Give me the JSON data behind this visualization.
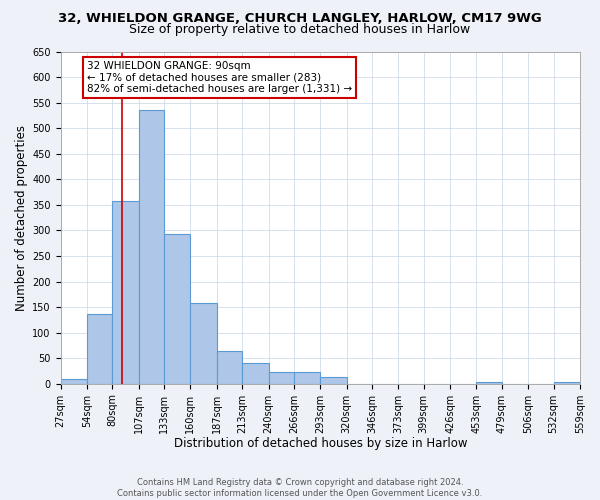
{
  "title": "32, WHIELDON GRANGE, CHURCH LANGLEY, HARLOW, CM17 9WG",
  "subtitle": "Size of property relative to detached houses in Harlow",
  "xlabel": "Distribution of detached houses by size in Harlow",
  "ylabel": "Number of detached properties",
  "bin_edges": [
    27,
    54,
    80,
    107,
    133,
    160,
    187,
    213,
    240,
    266,
    293,
    320,
    346,
    373,
    399,
    426,
    453,
    479,
    506,
    532,
    559
  ],
  "bin_heights": [
    10,
    137,
    358,
    535,
    292,
    157,
    65,
    40,
    22,
    22,
    13,
    0,
    0,
    0,
    0,
    0,
    3,
    0,
    0,
    3
  ],
  "bar_facecolor": "#aec6e8",
  "bar_edgecolor": "#5b9bd5",
  "bar_linewidth": 0.8,
  "vline_x": 90,
  "vline_color": "#cc0000",
  "vline_linewidth": 1.2,
  "annotation_text": "32 WHIELDON GRANGE: 90sqm\n← 17% of detached houses are smaller (283)\n82% of semi-detached houses are larger (1,331) →",
  "annotation_box_edgecolor": "#cc0000",
  "annotation_box_facecolor": "#ffffff",
  "ylim": [
    0,
    650
  ],
  "yticks": [
    0,
    50,
    100,
    150,
    200,
    250,
    300,
    350,
    400,
    450,
    500,
    550,
    600,
    650
  ],
  "xtick_labels": [
    "27sqm",
    "54sqm",
    "80sqm",
    "107sqm",
    "133sqm",
    "160sqm",
    "187sqm",
    "213sqm",
    "240sqm",
    "266sqm",
    "293sqm",
    "320sqm",
    "346sqm",
    "373sqm",
    "399sqm",
    "426sqm",
    "453sqm",
    "479sqm",
    "506sqm",
    "532sqm",
    "559sqm"
  ],
  "footer_line1": "Contains HM Land Registry data © Crown copyright and database right 2024.",
  "footer_line2": "Contains public sector information licensed under the Open Government Licence v3.0.",
  "background_color": "#eef2f8",
  "plot_background_color": "#ffffff",
  "title_fontsize": 9.5,
  "subtitle_fontsize": 9,
  "tick_fontsize": 7,
  "axis_label_fontsize": 8.5,
  "footer_fontsize": 6,
  "annotation_fontsize": 7.5
}
